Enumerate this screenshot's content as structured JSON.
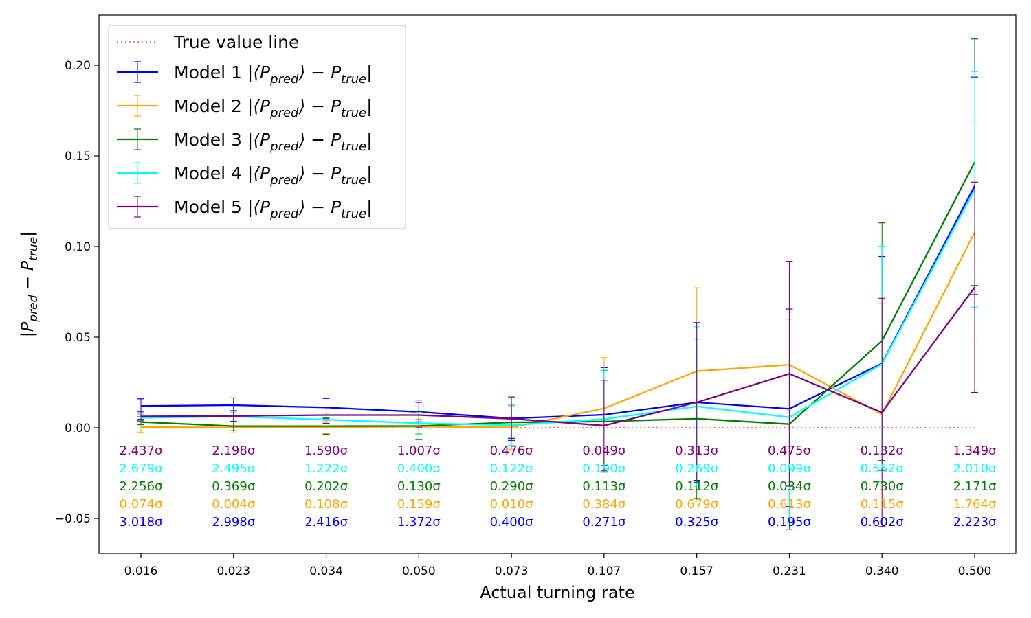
{
  "chart_data": {
    "type": "line",
    "xlabel": "Actual turning rate",
    "ylabel_main": "|P",
    "ylabel_sub1": "pred",
    "ylabel_mid": " − P",
    "ylabel_sub2": "true",
    "ylabel_end": "|",
    "categories": [
      "0.016",
      "0.023",
      "0.034",
      "0.050",
      "0.073",
      "0.107",
      "0.157",
      "0.231",
      "0.340",
      "0.500"
    ],
    "ylim": [
      -0.068,
      0.227
    ],
    "yticks": [
      -0.05,
      0.0,
      0.05,
      0.1,
      0.15,
      0.2
    ],
    "ytick_labels": [
      "−0.05",
      "0.00",
      "0.05",
      "0.10",
      "0.15",
      "0.20"
    ],
    "grid": false,
    "legend_placement": "top-left",
    "true_line": {
      "name": "True value line",
      "value": 0.0,
      "color": "#f08080"
    },
    "series": [
      {
        "name": "Model 1",
        "color": "#0000ff",
        "values": [
          0.012,
          0.0125,
          0.0112,
          0.0088,
          0.0052,
          0.0072,
          0.014,
          0.0105,
          0.0355,
          0.1335
        ],
        "err_lo": [
          0.006,
          0.0065,
          0.006,
          0.0055,
          0.011,
          0.028,
          0.043,
          0.054,
          0.059,
          0.06
        ],
        "err_hi": [
          0.004,
          0.004,
          0.005,
          0.0065,
          0.007,
          0.026,
          0.044,
          0.055,
          0.059,
          0.06
        ],
        "sigma": [
          "3.018σ",
          "2.998σ",
          "2.416σ",
          "1.372σ",
          "0.400σ",
          "0.271σ",
          "0.325σ",
          "0.195σ",
          "0.602σ",
          "2.223σ"
        ]
      },
      {
        "name": "Model 2",
        "color": "#ffa500",
        "values": [
          0.0004,
          0.0002,
          0.0003,
          0.0007,
          0.0002,
          0.0107,
          0.0312,
          0.0348,
          0.0075,
          0.1078
        ],
        "err_lo": [
          0.003,
          0.003,
          0.0035,
          0.004,
          0.012,
          0.028,
          0.046,
          0.057,
          0.061,
          0.061
        ],
        "err_hi": [
          0.003,
          0.003,
          0.0035,
          0.004,
          0.012,
          0.028,
          0.046,
          0.057,
          0.061,
          0.061
        ],
        "sigma": [
          "0.074σ",
          "0.004σ",
          "0.108σ",
          "0.159σ",
          "0.010σ",
          "0.384σ",
          "0.679σ",
          "0.613σ",
          "0.115σ",
          "1.764σ"
        ]
      },
      {
        "name": "Model 3",
        "color": "#008000",
        "values": [
          0.0032,
          0.0009,
          0.0009,
          0.001,
          0.003,
          0.0035,
          0.005,
          0.002,
          0.048,
          0.1465
        ],
        "err_lo": [
          0.0015,
          0.0025,
          0.0045,
          0.0075,
          0.01,
          0.028,
          0.044,
          0.058,
          0.066,
          0.068
        ],
        "err_hi": [
          0.0015,
          0.0025,
          0.0045,
          0.0075,
          0.01,
          0.028,
          0.044,
          0.058,
          0.065,
          0.068
        ],
        "sigma": [
          "2.256σ",
          "0.369σ",
          "0.202σ",
          "0.130σ",
          "0.290σ",
          "0.113σ",
          "0.112σ",
          "0.034σ",
          "0.730σ",
          "2.171σ"
        ]
      },
      {
        "name": "Model 4",
        "color": "#00ffff",
        "values": [
          0.0055,
          0.0062,
          0.0045,
          0.0025,
          0.0014,
          0.0048,
          0.0118,
          0.0058,
          0.0352,
          0.1315
        ],
        "err_lo": [
          0.002,
          0.0025,
          0.0035,
          0.006,
          0.011,
          0.027,
          0.044,
          0.058,
          0.065,
          0.065
        ],
        "err_hi": [
          0.002,
          0.0025,
          0.0035,
          0.006,
          0.011,
          0.027,
          0.044,
          0.058,
          0.065,
          0.065
        ],
        "sigma": [
          "2.679σ",
          "2.495σ",
          "1.222σ",
          "0.400σ",
          "0.122σ",
          "0.190σ",
          "0.269σ",
          "0.099σ",
          "0.552σ",
          "2.010σ"
        ]
      },
      {
        "name": "Model 5",
        "color": "#800080",
        "values": [
          0.0063,
          0.0065,
          0.007,
          0.007,
          0.005,
          0.0012,
          0.014,
          0.0298,
          0.0085,
          0.0775
        ],
        "err_lo": [
          0.0025,
          0.003,
          0.0045,
          0.007,
          0.012,
          0.025,
          0.044,
          0.062,
          0.063,
          0.058
        ],
        "err_hi": [
          0.0025,
          0.003,
          0.0045,
          0.007,
          0.012,
          0.025,
          0.044,
          0.062,
          0.063,
          0.058
        ],
        "sigma": [
          "2.437σ",
          "2.198σ",
          "1.590σ",
          "1.007σ",
          "0.476σ",
          "0.049σ",
          "0.313σ",
          "0.475σ",
          "0.132σ",
          "1.349σ"
        ]
      }
    ],
    "legend_formula": {
      "pre": "|⟨P",
      "sub1": "pred",
      "mid": "⟩ − P",
      "sub2": "true",
      "end": "|"
    }
  }
}
